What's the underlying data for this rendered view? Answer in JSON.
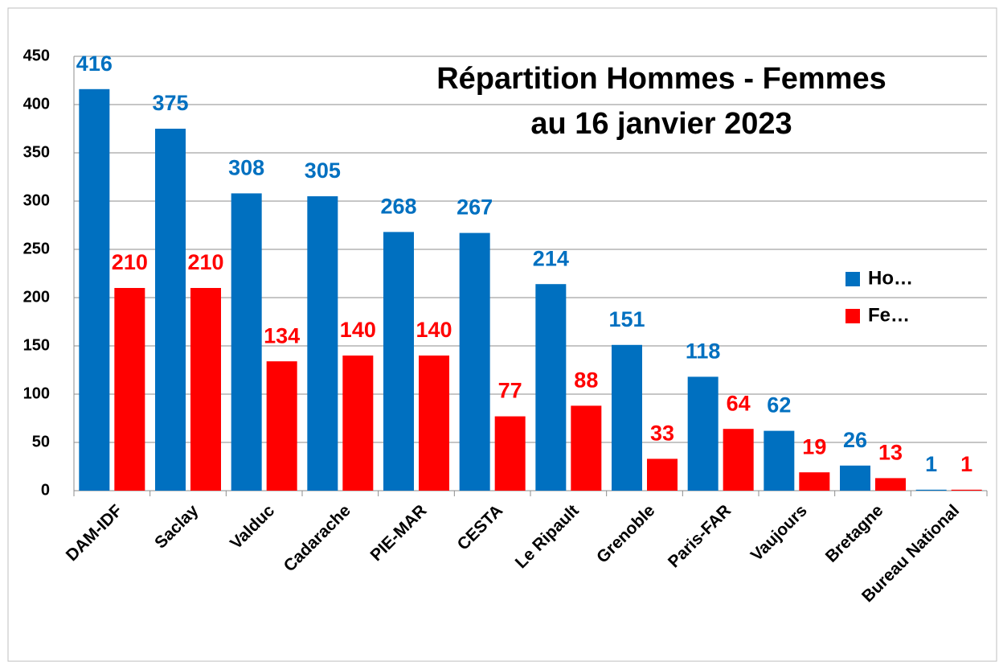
{
  "chart_data": {
    "type": "bar",
    "title": [
      "Répartition Hommes - Femmes",
      "au 16 janvier 2023"
    ],
    "categories": [
      "DAM-IDF",
      "Saclay",
      "Valduc",
      "Cadarache",
      "PIE-MAR",
      "CESTA",
      "Le Ripault",
      "Grenoble",
      "Paris-FAR",
      "Vaujours",
      "Bretagne",
      "Bureau National"
    ],
    "series": [
      {
        "name": "Ho…",
        "color": "#0070c0",
        "values": [
          416,
          375,
          308,
          305,
          268,
          267,
          214,
          151,
          118,
          62,
          26,
          1
        ]
      },
      {
        "name": "Fe…",
        "color": "#ff0000",
        "values": [
          210,
          210,
          134,
          140,
          140,
          77,
          88,
          33,
          64,
          19,
          13,
          1
        ]
      }
    ],
    "ylim": [
      0,
      450
    ],
    "yticks": [
      0,
      50,
      100,
      150,
      200,
      250,
      300,
      350,
      400,
      450
    ],
    "grid": true,
    "legend": "right"
  }
}
